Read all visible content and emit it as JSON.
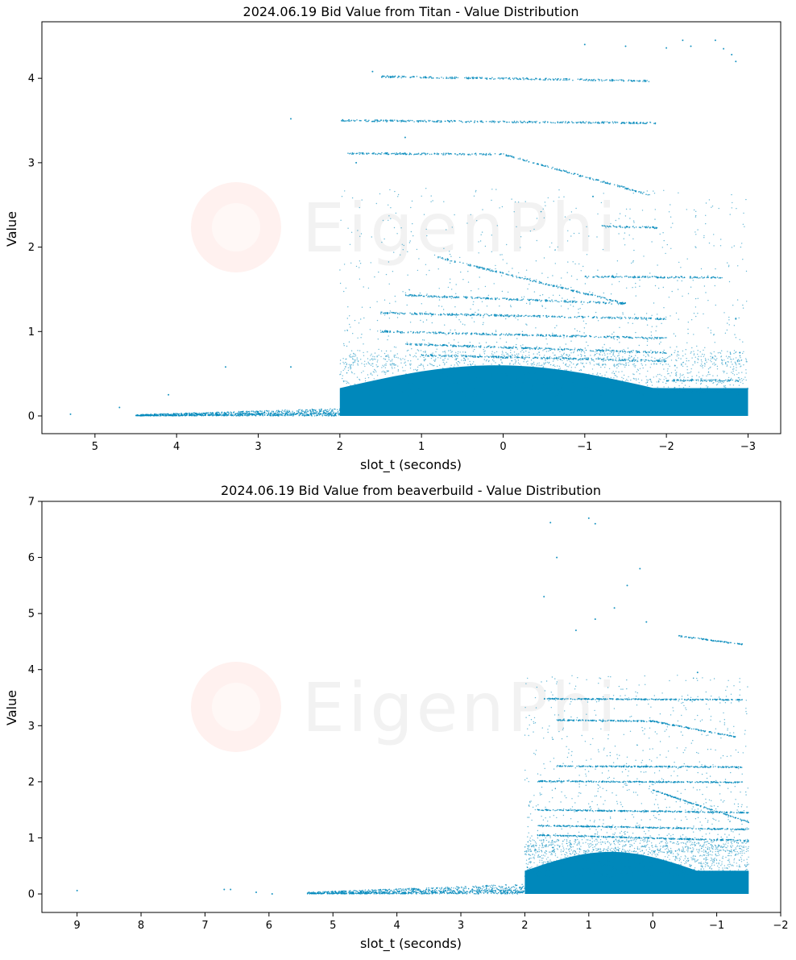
{
  "watermark": "EigenPhi",
  "point_color": "#0088bb",
  "chart_data": [
    {
      "type": "scatter",
      "title": "2024.06.19 Bid Value from Titan - Value Distribution",
      "xlabel": "slot_t (seconds)",
      "ylabel": "Value",
      "x_inverted": true,
      "xlim": [
        5.65,
        -3.4
      ],
      "ylim": [
        -0.21,
        4.67
      ],
      "xticks": [
        5,
        4,
        3,
        2,
        1,
        0,
        -1,
        -2,
        -3
      ],
      "yticks": [
        0,
        1,
        2,
        3,
        4
      ],
      "grid": false,
      "dense_band": {
        "x_from": 2.0,
        "x_to": -3.0,
        "y_max": 0.6
      },
      "low_tail": {
        "x_from": 4.5,
        "x_to": 2.0,
        "y_max": 0.15
      },
      "bands": [
        {
          "x_from": 1.5,
          "x_to": -1.8,
          "y_from": 4.02,
          "y_to": 3.97
        },
        {
          "x_from": 2.0,
          "x_to": -1.9,
          "y_from": 3.5,
          "y_to": 3.47
        },
        {
          "x_from": 1.9,
          "x_to": 0.0,
          "y_from": 3.11,
          "y_to": 3.1
        },
        {
          "x_from": 0.0,
          "x_to": -1.8,
          "y_from": 3.1,
          "y_to": 2.62
        },
        {
          "x_from": -1.2,
          "x_to": -1.9,
          "y_from": 2.25,
          "y_to": 2.23
        },
        {
          "x_from": -1.0,
          "x_to": -2.7,
          "y_from": 1.65,
          "y_to": 1.64
        },
        {
          "x_from": 0.8,
          "x_to": -1.5,
          "y_from": 1.88,
          "y_to": 1.33
        },
        {
          "x_from": 1.2,
          "x_to": -1.5,
          "y_from": 1.43,
          "y_to": 1.33
        },
        {
          "x_from": 1.5,
          "x_to": -2.0,
          "y_from": 1.22,
          "y_to": 1.15
        },
        {
          "x_from": 1.5,
          "x_to": -2.0,
          "y_from": 1.0,
          "y_to": 0.92
        },
        {
          "x_from": 1.2,
          "x_to": -2.0,
          "y_from": 0.85,
          "y_to": 0.75
        },
        {
          "x_from": 1.0,
          "x_to": -2.0,
          "y_from": 0.72,
          "y_to": 0.65
        },
        {
          "x_from": -2.0,
          "x_to": -2.9,
          "y_from": 0.42,
          "y_to": 0.42
        },
        {
          "x_from": -2.0,
          "x_to": -2.9,
          "y_from": 0.3,
          "y_to": 0.28
        }
      ],
      "outliers": [
        {
          "x": 5.3,
          "y": 0.02
        },
        {
          "x": 4.7,
          "y": 0.1
        },
        {
          "x": 4.1,
          "y": 0.25
        },
        {
          "x": 3.4,
          "y": 0.58
        },
        {
          "x": 2.6,
          "y": 0.58
        },
        {
          "x": 1.6,
          "y": 4.08
        },
        {
          "x": 2.6,
          "y": 3.52
        },
        {
          "x": 1.8,
          "y": 3.0
        },
        {
          "x": -1.0,
          "y": 4.4
        },
        {
          "x": -1.5,
          "y": 4.38
        },
        {
          "x": -2.0,
          "y": 4.36
        },
        {
          "x": -2.2,
          "y": 4.45
        },
        {
          "x": -2.3,
          "y": 4.38
        },
        {
          "x": -2.7,
          "y": 4.35
        },
        {
          "x": -2.8,
          "y": 4.28
        },
        {
          "x": -2.85,
          "y": 4.2
        },
        {
          "x": -2.6,
          "y": 4.45
        },
        {
          "x": -2.85,
          "y": 1.15
        },
        {
          "x": -2.9,
          "y": 0.75
        },
        {
          "x": 1.2,
          "y": 3.3
        },
        {
          "x": -1.1,
          "y": 2.6
        }
      ]
    },
    {
      "type": "scatter",
      "title": "2024.06.19 Bid Value from beaverbuild - Value Distribution",
      "xlabel": "slot_t (seconds)",
      "ylabel": "Value",
      "x_inverted": true,
      "xlim": [
        9.55,
        -2.0
      ],
      "ylim": [
        -0.33,
        7.0
      ],
      "xticks": [
        9,
        8,
        7,
        6,
        5,
        4,
        3,
        2,
        1,
        0,
        -1,
        -2
      ],
      "yticks": [
        0,
        1,
        2,
        3,
        4,
        5,
        6,
        7
      ],
      "grid": false,
      "dense_band": {
        "x_from": 2.0,
        "x_to": -1.5,
        "y_max": 0.75
      },
      "low_tail": {
        "x_from": 5.4,
        "x_to": 2.0,
        "y_max": 0.3
      },
      "bands": [
        {
          "x_from": -0.4,
          "x_to": -1.4,
          "y_from": 4.6,
          "y_to": 4.45
        },
        {
          "x_from": 1.7,
          "x_to": -1.4,
          "y_from": 3.48,
          "y_to": 3.46
        },
        {
          "x_from": 1.5,
          "x_to": 0.0,
          "y_from": 3.1,
          "y_to": 3.08
        },
        {
          "x_from": 0.0,
          "x_to": -1.3,
          "y_from": 3.08,
          "y_to": 2.8
        },
        {
          "x_from": 1.5,
          "x_to": -1.4,
          "y_from": 2.28,
          "y_to": 2.26
        },
        {
          "x_from": 1.8,
          "x_to": -1.4,
          "y_from": 2.01,
          "y_to": 1.99
        },
        {
          "x_from": 0.0,
          "x_to": -1.5,
          "y_from": 1.85,
          "y_to": 1.28
        },
        {
          "x_from": 1.8,
          "x_to": -1.5,
          "y_from": 1.5,
          "y_to": 1.45
        },
        {
          "x_from": 1.8,
          "x_to": -1.5,
          "y_from": 1.22,
          "y_to": 1.15
        },
        {
          "x_from": 1.8,
          "x_to": -1.5,
          "y_from": 1.05,
          "y_to": 0.95
        }
      ],
      "outliers": [
        {
          "x": 9.0,
          "y": 0.06
        },
        {
          "x": 6.7,
          "y": 0.08
        },
        {
          "x": 6.6,
          "y": 0.08
        },
        {
          "x": 6.2,
          "y": 0.03
        },
        {
          "x": 5.95,
          "y": 0.0
        },
        {
          "x": 1.6,
          "y": 6.62
        },
        {
          "x": 1.0,
          "y": 6.7
        },
        {
          "x": 0.9,
          "y": 6.6
        },
        {
          "x": 0.2,
          "y": 5.8
        },
        {
          "x": 0.4,
          "y": 5.5
        },
        {
          "x": -0.7,
          "y": 3.95
        },
        {
          "x": 1.5,
          "y": 6.0
        },
        {
          "x": 1.7,
          "y": 5.3
        },
        {
          "x": 0.6,
          "y": 5.1
        },
        {
          "x": 0.9,
          "y": 4.9
        },
        {
          "x": 1.2,
          "y": 4.7
        },
        {
          "x": 0.1,
          "y": 4.85
        }
      ]
    }
  ]
}
